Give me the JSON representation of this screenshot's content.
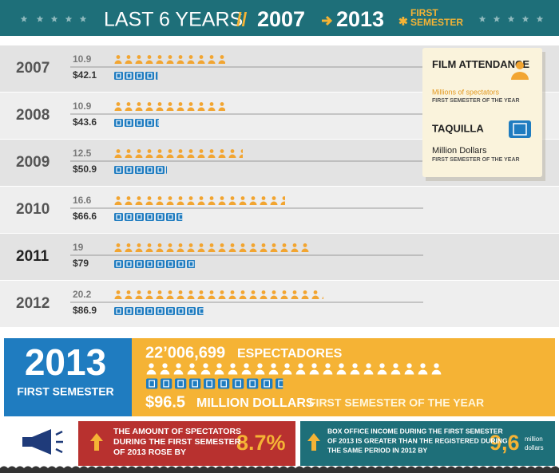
{
  "header": {
    "title": "LAST 6 YEARS",
    "from": "2007",
    "to": "2013",
    "period": "FIRST SEMESTER"
  },
  "rows": [
    {
      "year": "2007",
      "attendance": 10.9,
      "box_office": {
        "value": 42.1,
        "label": "$42.1"
      }
    },
    {
      "year": "2008",
      "attendance": 10.9,
      "box_office": {
        "value": 43.6,
        "label": "$43.6"
      }
    },
    {
      "year": "2009",
      "attendance": 12.5,
      "box_office": {
        "value": 50.9,
        "label": "$50.9"
      }
    },
    {
      "year": "2010",
      "attendance": 16.6,
      "box_office": {
        "value": 66.6,
        "label": "$66.6"
      }
    },
    {
      "year": "2011",
      "attendance": 19,
      "box_office": {
        "value": 79,
        "label": "$79"
      }
    },
    {
      "year": "2012",
      "attendance": 20.2,
      "box_office": {
        "value": 86.9,
        "label": "$86.9"
      }
    }
  ],
  "legend": {
    "attendance_title": "FILM ATTENDANCE",
    "attendance_unit": "Millions of spectators",
    "attendance_note": "FIRST SEMESTER OF THE YEAR",
    "box_title": "TAQUILLA",
    "box_unit": "Million Dollars",
    "box_note": "FIRST SEMESTER OF THE YEAR"
  },
  "current": {
    "year": "2013",
    "period": "FIRST SEMESTER",
    "attendance": {
      "value": 22.006699,
      "label": "22’006,699"
    },
    "attendance_word": "ESPECTADORES",
    "box_office": {
      "value": 96.5,
      "label": "$96.5"
    },
    "box_word": "MILLION DOLLARS",
    "note": "FIRST SEMESTER OF THE YEAR"
  },
  "facts": [
    {
      "lines": [
        "THE AMOUNT OF SPECTATORS",
        "DURING THE FIRST SEMESTER",
        "OF 2013 ROSE BY"
      ],
      "figure": "8.7%"
    },
    {
      "lines": [
        "BOX OFFICE INCOME DURING THE FIRST SEMESTER",
        "OF 2013 IS GREATER THAN THE REGISTERED DURING",
        "THE SAME PERIOD IN 2012 BY"
      ],
      "figure": "9,6",
      "unit": [
        "million",
        "dollars"
      ]
    }
  ]
}
